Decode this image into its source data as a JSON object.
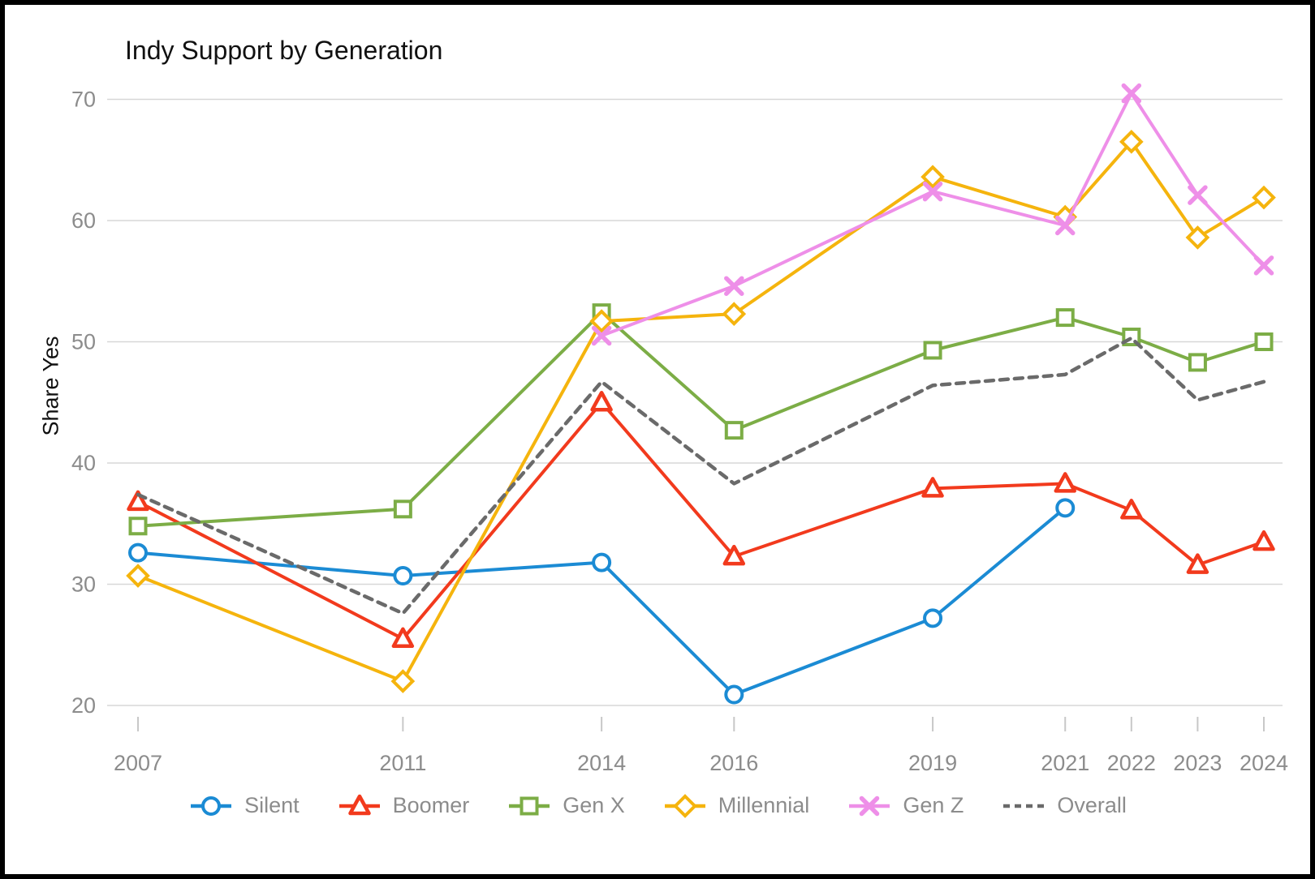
{
  "title": "Indy Support by Generation",
  "y_axis": {
    "label": "Share Yes",
    "ticks": [
      20,
      30,
      40,
      50,
      60,
      70
    ]
  },
  "x_axis": {
    "tick_labels": [
      "2007",
      "2011",
      "2014",
      "2016",
      "2019",
      "2021",
      "2022",
      "2023",
      "2024"
    ]
  },
  "colors": {
    "silent": "#1b8bd4",
    "boomer": "#f23a1d",
    "gen_x": "#7cad46",
    "millennial": "#f5b40d",
    "gen_z": "#ee8fe8",
    "overall": "#6a6a6a",
    "gridline": "#d7d7d7",
    "tick_mark": "#c8c8c8",
    "axis_text": "#8c8c8c",
    "title_text": "#111111"
  },
  "chart_data": {
    "type": "line",
    "title": "Indy Support by Generation",
    "ylabel": "Share Yes",
    "xlabel": "",
    "ylim": [
      20,
      70
    ],
    "yticks": [
      20,
      30,
      40,
      50,
      60,
      70
    ],
    "grid": true,
    "legend_position": "bottom",
    "x": [
      2007,
      2011,
      2014,
      2016,
      2019,
      2021,
      2022,
      2023,
      2024
    ],
    "series": [
      {
        "name": "Silent",
        "color": "#1b8bd4",
        "marker": "circle",
        "dashed": false,
        "values": [
          32.6,
          30.7,
          31.8,
          20.9,
          27.2,
          36.3,
          null,
          null,
          null
        ]
      },
      {
        "name": "Boomer",
        "color": "#f23a1d",
        "marker": "triangle",
        "dashed": false,
        "values": [
          36.8,
          25.5,
          45.0,
          32.3,
          37.9,
          38.3,
          36.1,
          31.6,
          33.5
        ]
      },
      {
        "name": "Gen X",
        "color": "#7cad46",
        "marker": "square",
        "dashed": false,
        "values": [
          34.8,
          36.2,
          52.4,
          42.7,
          49.3,
          52.0,
          50.4,
          48.3,
          50.0
        ]
      },
      {
        "name": "Millennial",
        "color": "#f5b40d",
        "marker": "diamond",
        "dashed": false,
        "values": [
          30.7,
          22.0,
          51.7,
          52.3,
          63.6,
          60.3,
          66.5,
          58.6,
          61.9
        ]
      },
      {
        "name": "Gen Z",
        "color": "#ee8fe8",
        "marker": "x",
        "dashed": false,
        "values": [
          null,
          null,
          50.5,
          54.6,
          62.4,
          59.6,
          70.5,
          62.1,
          56.3
        ]
      },
      {
        "name": "Overall",
        "color": "#6a6a6a",
        "marker": "none",
        "dashed": true,
        "values": [
          37.4,
          27.6,
          46.7,
          38.3,
          46.4,
          47.3,
          50.3,
          45.2,
          46.7
        ]
      }
    ]
  }
}
